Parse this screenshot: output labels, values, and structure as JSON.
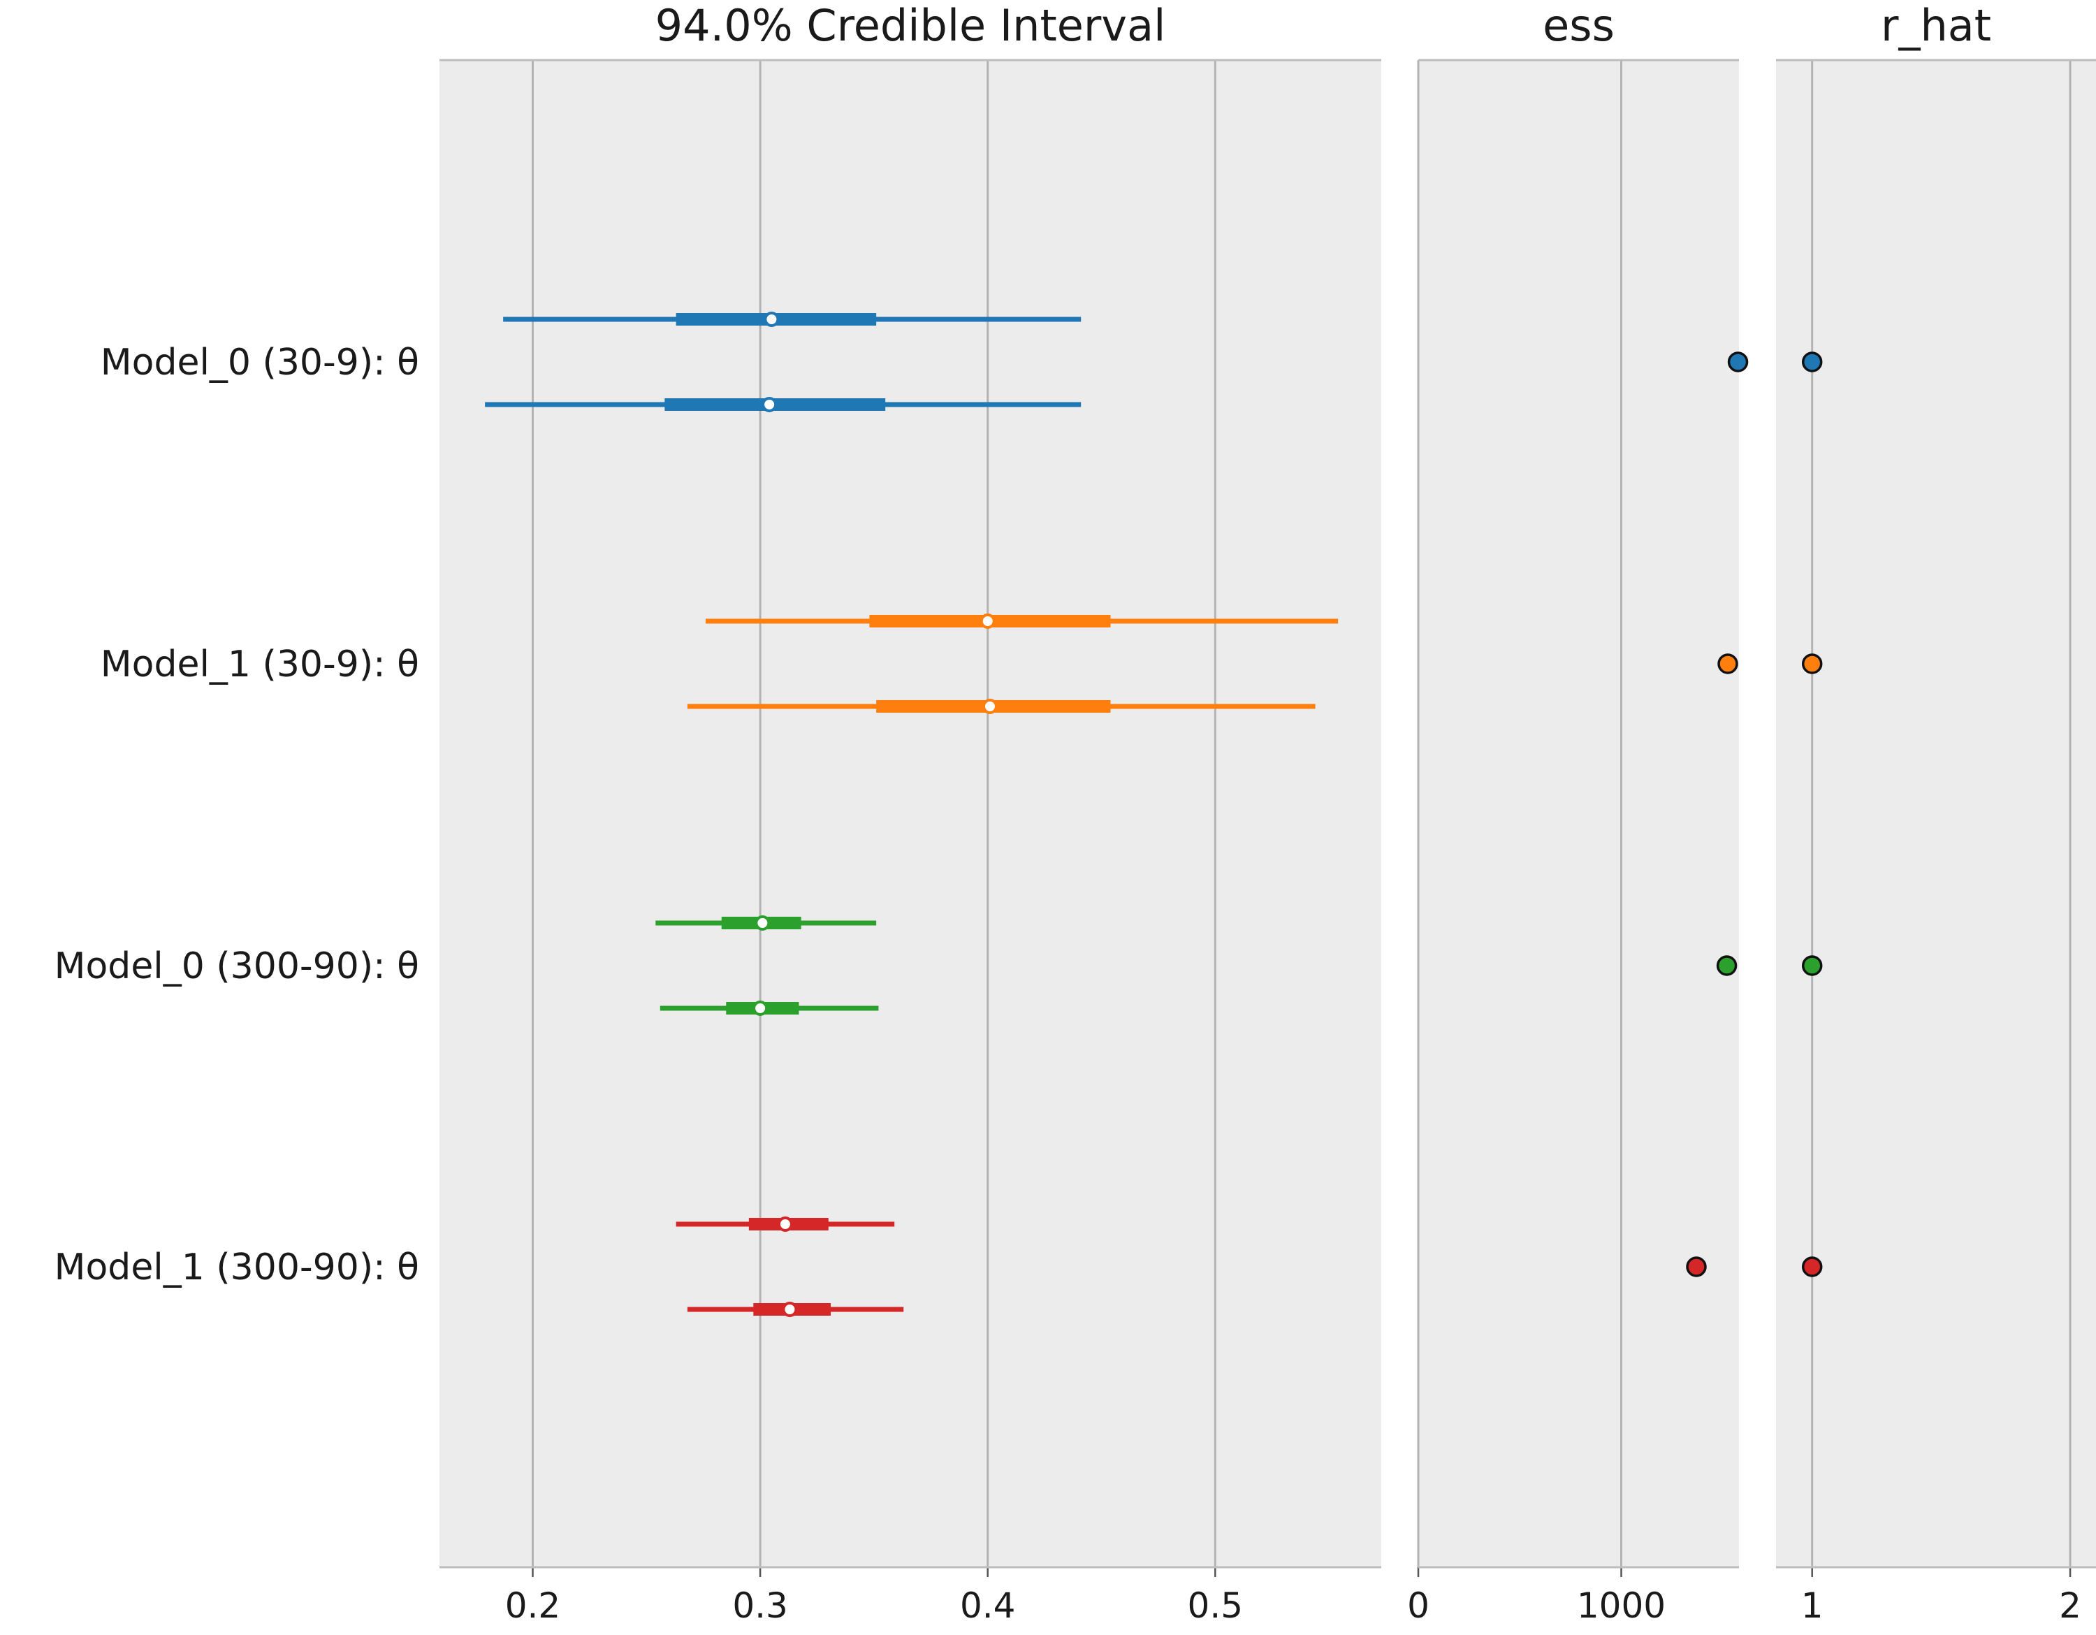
{
  "chart_data": {
    "type": "forest",
    "panels": [
      {
        "key": "interval",
        "title": "94.0% Credible Interval",
        "xlim": [
          0.159,
          0.573
        ],
        "ticks": [
          0.2,
          0.3,
          0.4,
          0.5
        ],
        "tick_labels": [
          "0.2",
          "0.3",
          "0.4",
          "0.5"
        ],
        "grid": true
      },
      {
        "key": "ess",
        "title": "ess",
        "xlim": [
          0,
          1580
        ],
        "ticks": [
          0,
          1000
        ],
        "tick_labels": [
          "0",
          "1000"
        ],
        "grid": true
      },
      {
        "key": "r_hat",
        "title": "r_hat",
        "xlim": [
          0.86,
          2.1
        ],
        "ticks": [
          1,
          2
        ],
        "tick_labels": [
          "1",
          "2"
        ],
        "grid": true
      }
    ],
    "series": [
      {
        "label": "Model_0 (30-9): θ",
        "color": "#1f77b4",
        "ess": 1575,
        "r_hat": 1.0,
        "chains": [
          {
            "hdi_94": [
              0.187,
              0.441
            ],
            "iqr": [
              0.263,
              0.351
            ],
            "median": 0.305
          },
          {
            "hdi_94": [
              0.179,
              0.441
            ],
            "iqr": [
              0.258,
              0.355
            ],
            "median": 0.304
          }
        ]
      },
      {
        "label": "Model_1 (30-9): θ",
        "color": "#ff7f0e",
        "ess": 1525,
        "r_hat": 1.0,
        "chains": [
          {
            "hdi_94": [
              0.276,
              0.554
            ],
            "iqr": [
              0.348,
              0.454
            ],
            "median": 0.4
          },
          {
            "hdi_94": [
              0.268,
              0.544
            ],
            "iqr": [
              0.351,
              0.454
            ],
            "median": 0.401
          }
        ]
      },
      {
        "label": "Model_0 (300-90): θ",
        "color": "#2ca02c",
        "ess": 1520,
        "r_hat": 1.0,
        "chains": [
          {
            "hdi_94": [
              0.254,
              0.351
            ],
            "iqr": [
              0.283,
              0.318
            ],
            "median": 0.301
          },
          {
            "hdi_94": [
              0.256,
              0.352
            ],
            "iqr": [
              0.285,
              0.317
            ],
            "median": 0.3
          }
        ]
      },
      {
        "label": "Model_1 (300-90): θ",
        "color": "#d62728",
        "ess": 1370,
        "r_hat": 1.0,
        "chains": [
          {
            "hdi_94": [
              0.263,
              0.359
            ],
            "iqr": [
              0.295,
              0.33
            ],
            "median": 0.311
          },
          {
            "hdi_94": [
              0.268,
              0.363
            ],
            "iqr": [
              0.297,
              0.331
            ],
            "median": 0.313
          }
        ]
      }
    ]
  }
}
